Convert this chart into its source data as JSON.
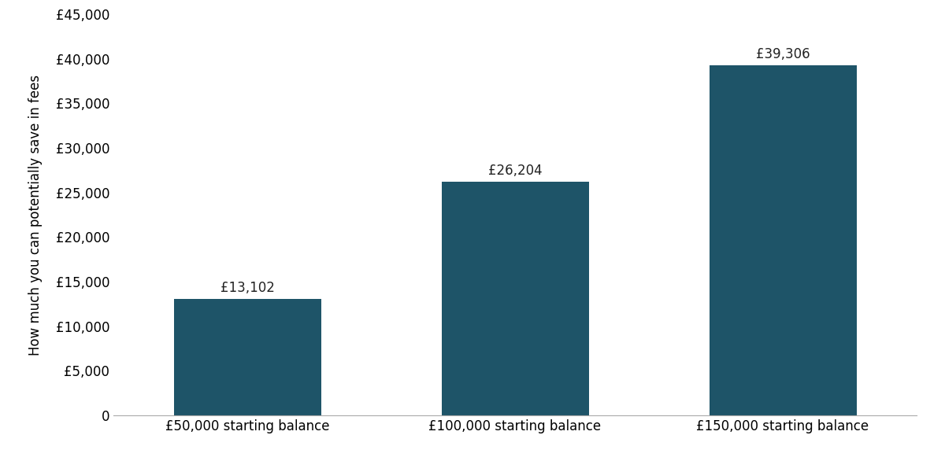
{
  "categories": [
    "£50,000 starting balance",
    "£100,000 starting balance",
    "£150,000 starting balance"
  ],
  "values": [
    13102,
    26204,
    39306
  ],
  "bar_labels": [
    "£13,102",
    "£26,204",
    "£39,306"
  ],
  "bar_color": "#1e5468",
  "ylabel": "How much you can potentially save in fees",
  "ylim": [
    0,
    45000
  ],
  "yticks": [
    0,
    5000,
    10000,
    15000,
    20000,
    25000,
    30000,
    35000,
    40000,
    45000
  ],
  "ytick_labels": [
    "0",
    "£5,000",
    "£10,000",
    "£15,000",
    "£20,000",
    "£25,000",
    "£30,000",
    "£35,000",
    "£40,000",
    "£45,000"
  ],
  "background_color": "#ffffff",
  "bar_width": 0.55,
  "tick_fontsize": 12,
  "ylabel_fontsize": 12,
  "annotation_fontsize": 12,
  "xlim": [
    -0.5,
    2.5
  ]
}
